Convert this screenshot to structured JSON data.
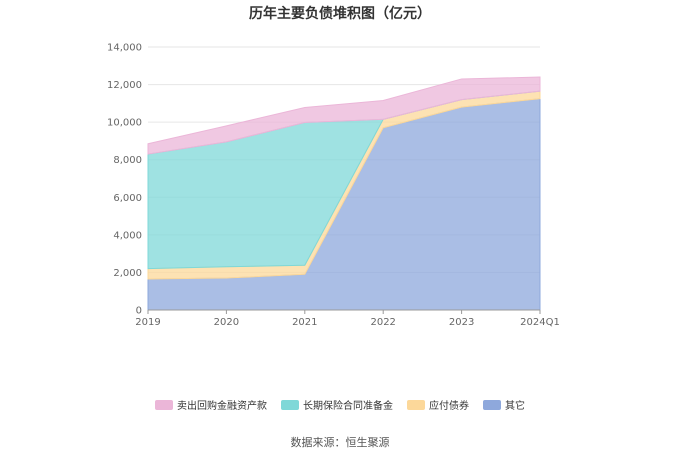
{
  "chart_data": {
    "type": "area",
    "stacked": true,
    "title": "历年主要负债堆积图（亿元）",
    "categories": [
      "2019",
      "2020",
      "2021",
      "2022",
      "2023",
      "2024Q1"
    ],
    "y_ticks": [
      "0",
      "2,000",
      "4,000",
      "6,000",
      "8,000",
      "10,000",
      "12,000",
      "14,000"
    ],
    "ylim": [
      0,
      14000
    ],
    "grid": true,
    "legend_position": "bottom",
    "series": [
      {
        "name": "其它",
        "color": "#8ea8dc",
        "values": [
          1650,
          1700,
          1900,
          9700,
          10800,
          11250
        ]
      },
      {
        "name": "应付债券",
        "color": "#fcd89a",
        "values": [
          550,
          600,
          480,
          450,
          400,
          400
        ]
      },
      {
        "name": "长期保险合同准备金",
        "color": "#7fd8d8",
        "values": [
          6100,
          6650,
          7600,
          0,
          0,
          0
        ]
      },
      {
        "name": "卖出回购金融资产款",
        "color": "#ebb6d8",
        "values": [
          550,
          850,
          800,
          1000,
          1100,
          750
        ]
      }
    ],
    "legend_order": [
      "卖出回购金融资产款",
      "长期保险合同准备金",
      "应付债券",
      "其它"
    ]
  },
  "source_text": "数据来源：恒生聚源"
}
